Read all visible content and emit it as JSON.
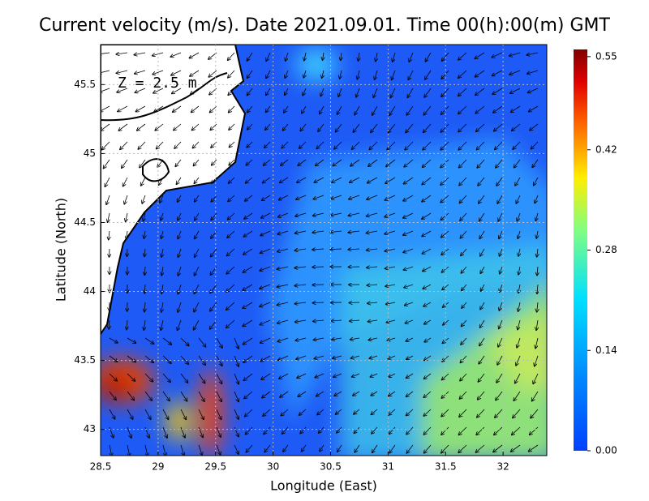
{
  "chart_data": {
    "type": "vector-field",
    "title": "Current velocity (m/s). Date 2021.09.01. Time 00(h):00(m) GMT",
    "annotation": "Z = 2.5 m",
    "x_label": "Longitude (East)",
    "y_label": "Latitude (North)",
    "xlim": [
      28.5,
      32.38
    ],
    "xticks": [
      28.5,
      29,
      29.5,
      30,
      30.5,
      31,
      31.5,
      32
    ],
    "ylim": [
      42.81,
      45.79
    ],
    "yticks": [
      43,
      43.5,
      44,
      44.5,
      45,
      45.5
    ],
    "grid": true,
    "colorbar": {
      "lim": [
        0,
        0.56
      ],
      "ticks": [
        {
          "value": 0,
          "label": "0.00"
        },
        0.14,
        0.28,
        0.42,
        0.55
      ]
    }
  }
}
